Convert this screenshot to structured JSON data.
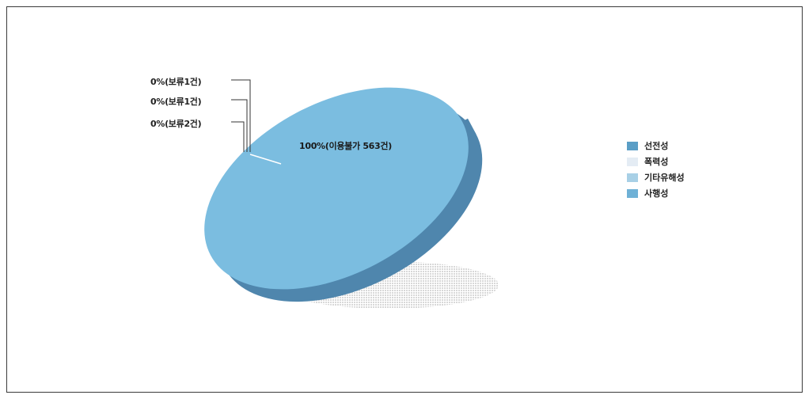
{
  "chart_data": {
    "type": "pie",
    "slices": [
      {
        "label": "0%(보류1건)",
        "value": 0
      },
      {
        "label": "0%(보류1건)",
        "value": 0
      },
      {
        "label": "0%(보류2건)",
        "value": 0
      },
      {
        "label": "100%(이용불가 563건)",
        "value": 100
      }
    ],
    "legend": [
      {
        "name": "선전성",
        "color": "#5a9ec6"
      },
      {
        "name": "폭력성",
        "color": "#e4ecf4"
      },
      {
        "name": "기타유해성",
        "color": "#a8d0e6"
      },
      {
        "name": "사행성",
        "color": "#6fb1d6"
      }
    ],
    "pie_top_color": "#7bbde0",
    "pie_side_color": "#4f86ad",
    "shadow_color": "#d8d8d8",
    "legend_position": "right"
  }
}
